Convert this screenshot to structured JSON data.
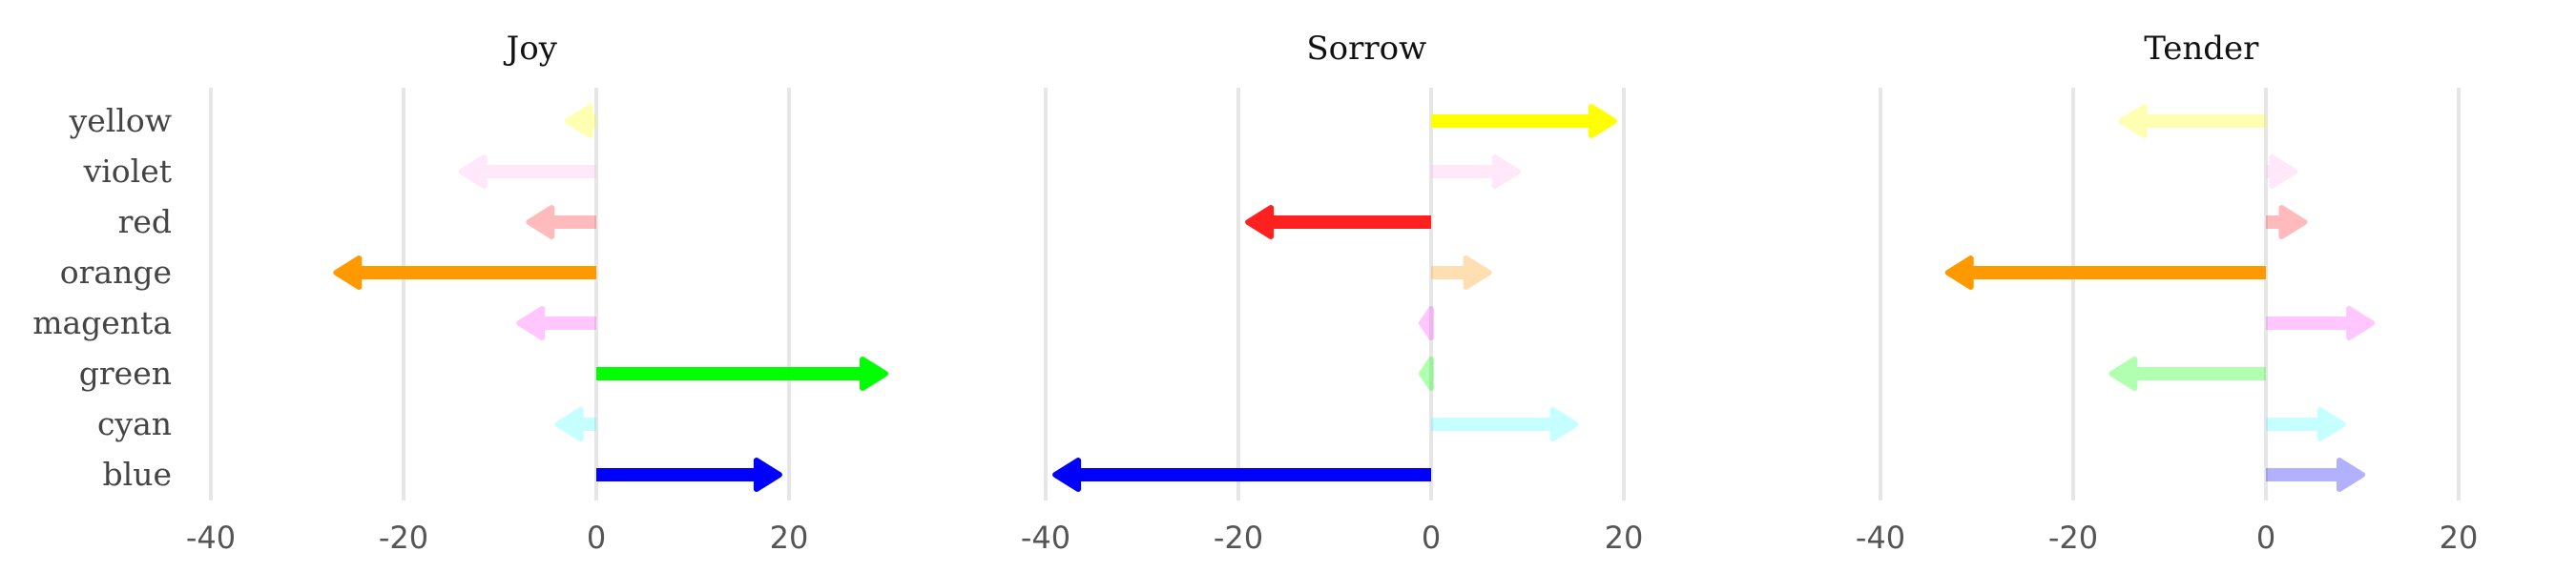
{
  "chart_data": {
    "type": "bar",
    "style": "diverging arrows",
    "categories": [
      "yellow",
      "violet",
      "red",
      "orange",
      "magenta",
      "green",
      "cyan",
      "blue"
    ],
    "colors": {
      "yellow": "#ffff00",
      "violet": "#ffb6ee",
      "red": "#ff2020",
      "orange": "#ff9900",
      "magenta": "#ff44ff",
      "green": "#00ff00",
      "cyan": "#44ffff",
      "blue": "#0000ff"
    },
    "xlim": [
      -42,
      28
    ],
    "xticks": [
      -40,
      -20,
      0,
      20
    ],
    "grid": true,
    "panels": [
      {
        "title": "Joy",
        "values": [
          -3,
          -14,
          -7,
          -27,
          -8,
          30,
          -4,
          19
        ],
        "highlighted": [
          "orange",
          "green",
          "blue"
        ]
      },
      {
        "title": "Sorrow",
        "values": [
          19,
          9,
          -19,
          6,
          -1,
          -1,
          15,
          -39
        ],
        "highlighted": [
          "yellow",
          "red",
          "blue"
        ]
      },
      {
        "title": "Tender",
        "values": [
          -15,
          3,
          4,
          -33,
          11,
          -16,
          8,
          10
        ],
        "highlighted": [
          "orange"
        ]
      }
    ]
  }
}
